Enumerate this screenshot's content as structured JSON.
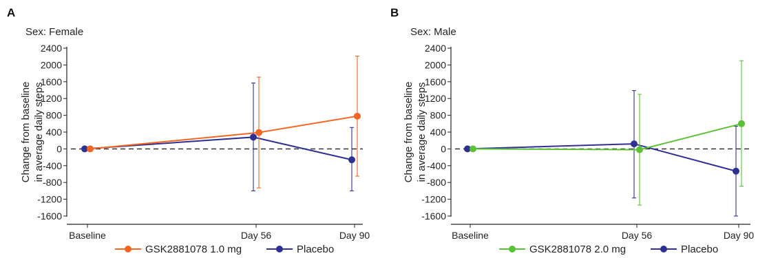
{
  "chart_data": [
    {
      "type": "line",
      "panel": "A",
      "subtitle": "Sex: Female",
      "ylabel": [
        "Change from baseline",
        "in average daily steps"
      ],
      "categories": [
        "Baseline",
        "Day 56",
        "Day 90"
      ],
      "x": [
        0,
        56,
        90
      ],
      "ylim": [
        -1600,
        2400
      ],
      "yticks": [
        2400,
        2000,
        1600,
        1200,
        800,
        400,
        0,
        -400,
        -800,
        -1200,
        -1600
      ],
      "reference_line": 0,
      "series": [
        {
          "name": "GSK2881078 1.0 mg",
          "color": "#f26522",
          "values": [
            0,
            390,
            780
          ],
          "lower": [
            0,
            -930,
            -650
          ],
          "upper": [
            0,
            1710,
            2210
          ]
        },
        {
          "name": "Placebo",
          "color": "#2e3192",
          "values": [
            0,
            280,
            -260
          ],
          "lower": [
            0,
            -1000,
            -1000
          ],
          "upper": [
            0,
            1570,
            510
          ]
        }
      ]
    },
    {
      "type": "line",
      "panel": "B",
      "subtitle": "Sex: Male",
      "ylabel": [
        "Change from baseline",
        "in average daily steps"
      ],
      "categories": [
        "Baseline",
        "Day 56",
        "Day 90"
      ],
      "x": [
        0,
        56,
        90
      ],
      "ylim": [
        -1600,
        2400
      ],
      "yticks": [
        2400,
        2000,
        1600,
        1200,
        800,
        400,
        0,
        -400,
        -800,
        -1200,
        -1600
      ],
      "reference_line": 0,
      "series": [
        {
          "name": "GSK2881078 2.0 mg",
          "color": "#5bc236",
          "values": [
            0,
            -20,
            600
          ],
          "lower": [
            0,
            -1340,
            -890
          ],
          "upper": [
            0,
            1300,
            2100
          ]
        },
        {
          "name": "Placebo",
          "color": "#2e3192",
          "values": [
            0,
            120,
            -530
          ],
          "lower": [
            0,
            -1170,
            -1600
          ],
          "upper": [
            0,
            1390,
            540
          ]
        }
      ]
    }
  ]
}
